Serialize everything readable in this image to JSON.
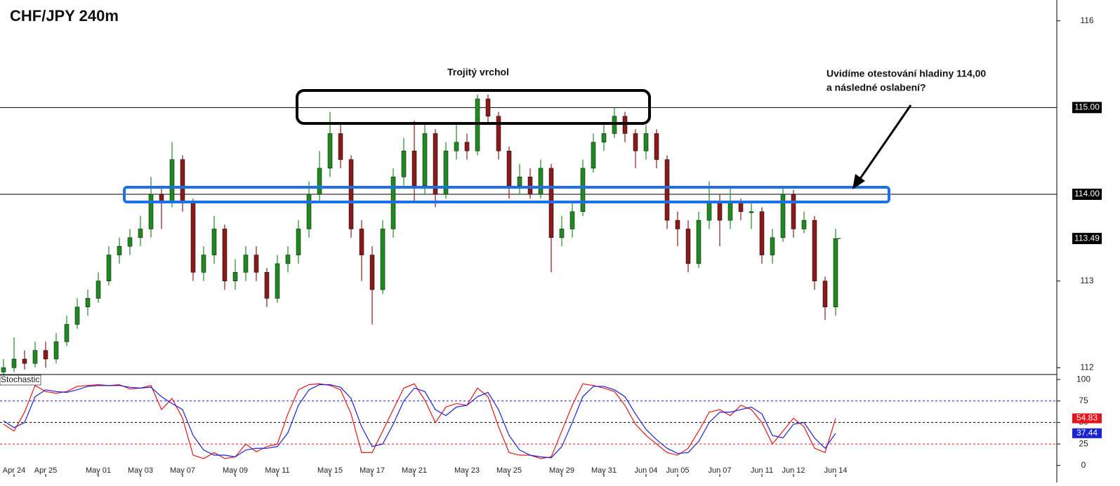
{
  "chart_data": [
    {
      "type": "candlestick",
      "title": "CHF/JPY 240m",
      "annotations": [
        "Trojitý vrchol",
        "Uvidíme otestování hladiny 114,00",
        "a následné oslabení?"
      ],
      "categories": [
        null,
        "Apr 24",
        null,
        null,
        "Apr 25",
        null,
        null,
        null,
        null,
        "May 01",
        null,
        null,
        null,
        "May 03",
        null,
        null,
        null,
        "May 07",
        null,
        null,
        null,
        null,
        "May 09",
        null,
        null,
        null,
        "May 11",
        null,
        null,
        null,
        null,
        "May 15",
        null,
        null,
        null,
        "May 17",
        null,
        null,
        null,
        "May 21",
        null,
        null,
        null,
        null,
        "May 23",
        null,
        null,
        null,
        "May 25",
        null,
        null,
        null,
        null,
        "May 29",
        null,
        null,
        null,
        "May 31",
        null,
        null,
        null,
        "Jun 04",
        null,
        null,
        "Jun 05",
        null,
        null,
        null,
        "Jun 07",
        null,
        null,
        null,
        "Jun 11",
        null,
        null,
        "Jun 12",
        null,
        null,
        null,
        "Jun 14"
      ],
      "open": [
        111.95,
        112.0,
        112.1,
        112.05,
        112.2,
        112.1,
        112.3,
        112.5,
        112.7,
        112.8,
        113.0,
        113.3,
        113.4,
        113.5,
        113.6,
        114.0,
        113.9,
        114.4,
        113.9,
        113.1,
        113.3,
        113.6,
        113.0,
        113.1,
        113.3,
        113.1,
        112.8,
        113.2,
        113.3,
        113.6,
        114.0,
        114.3,
        114.7,
        114.4,
        113.6,
        113.3,
        112.9,
        113.6,
        114.2,
        114.5,
        114.1,
        114.7,
        114.0,
        114.5,
        114.6,
        114.5,
        115.1,
        114.9,
        114.5,
        114.1,
        114.2,
        114.0,
        114.3,
        113.5,
        113.6,
        113.8,
        114.3,
        114.6,
        114.7,
        114.9,
        114.7,
        114.5,
        114.7,
        114.4,
        113.7,
        113.6,
        113.2,
        113.7,
        113.9,
        113.7,
        113.9,
        113.8,
        113.8,
        113.3,
        113.5,
        114.0,
        113.6,
        113.7,
        113.0,
        112.7
      ],
      "high": [
        112.1,
        112.35,
        112.2,
        112.3,
        112.3,
        112.4,
        112.6,
        112.8,
        112.9,
        113.1,
        113.4,
        113.5,
        113.6,
        113.75,
        114.2,
        114.1,
        114.6,
        114.45,
        113.95,
        113.4,
        113.75,
        113.65,
        113.25,
        113.4,
        113.4,
        113.15,
        113.3,
        113.4,
        113.7,
        114.15,
        114.5,
        114.95,
        114.8,
        114.45,
        113.7,
        113.4,
        113.7,
        114.3,
        114.65,
        114.85,
        114.8,
        114.75,
        114.6,
        114.8,
        114.7,
        115.15,
        115.15,
        114.95,
        114.55,
        114.35,
        114.3,
        114.4,
        114.35,
        113.75,
        113.9,
        114.4,
        114.7,
        114.8,
        115.0,
        114.95,
        114.75,
        114.8,
        114.75,
        114.45,
        113.8,
        113.7,
        113.8,
        114.15,
        114.0,
        114.1,
        113.95,
        113.9,
        113.85,
        113.6,
        114.1,
        114.05,
        113.8,
        113.75,
        113.05,
        113.6
      ],
      "low": [
        111.9,
        111.95,
        111.98,
        112.0,
        112.0,
        112.05,
        112.25,
        112.45,
        112.6,
        112.75,
        112.95,
        113.2,
        113.3,
        113.4,
        113.5,
        113.6,
        113.85,
        113.8,
        113.0,
        113.0,
        113.2,
        112.9,
        112.9,
        113.0,
        113.0,
        112.7,
        112.75,
        113.1,
        113.2,
        113.5,
        113.9,
        114.2,
        114.3,
        113.5,
        113.0,
        112.5,
        112.85,
        113.5,
        114.1,
        113.9,
        114.0,
        113.85,
        113.95,
        114.4,
        114.4,
        114.45,
        114.8,
        114.4,
        113.95,
        114.0,
        113.95,
        113.95,
        113.1,
        113.4,
        113.5,
        113.75,
        114.25,
        114.5,
        114.65,
        114.6,
        114.3,
        114.4,
        114.3,
        113.6,
        113.4,
        113.1,
        113.15,
        113.6,
        113.4,
        113.6,
        113.7,
        113.6,
        113.2,
        113.2,
        113.45,
        113.5,
        113.55,
        112.9,
        112.55,
        112.6
      ],
      "close": [
        112.0,
        112.1,
        112.05,
        112.2,
        112.1,
        112.3,
        112.5,
        112.7,
        112.8,
        113.0,
        113.3,
        113.4,
        113.5,
        113.6,
        114.0,
        113.9,
        114.4,
        113.9,
        113.1,
        113.3,
        113.6,
        113.0,
        113.1,
        113.3,
        113.1,
        112.8,
        113.2,
        113.3,
        113.6,
        114.0,
        114.3,
        114.7,
        114.4,
        113.6,
        113.3,
        112.9,
        113.6,
        114.2,
        114.5,
        114.1,
        114.7,
        114.0,
        114.5,
        114.6,
        114.5,
        115.1,
        114.9,
        114.5,
        114.1,
        114.2,
        114.0,
        114.3,
        113.5,
        113.6,
        113.8,
        114.3,
        114.6,
        114.7,
        114.9,
        114.7,
        114.5,
        114.7,
        114.4,
        113.7,
        113.6,
        113.2,
        113.7,
        113.9,
        113.7,
        113.9,
        113.8,
        113.8,
        113.3,
        113.5,
        114.0,
        113.6,
        113.7,
        113.0,
        112.7,
        113.49
      ],
      "up_color": "#1f8a1f",
      "down_color": "#8b1a1a",
      "ylim": [
        111.93,
        116.24
      ],
      "yticks": [
        112,
        113,
        116
      ],
      "hlines": [
        {
          "value": 115,
          "label": "115.00"
        },
        {
          "value": 114,
          "label": "114.00"
        }
      ]
    },
    {
      "type": "line",
      "title": "Stochastic",
      "series": [
        {
          "name": "%K",
          "color": "#e8141b",
          "values": [
            48,
            40,
            62,
            93,
            86,
            84,
            86,
            92,
            93,
            94,
            93,
            94,
            89,
            90,
            93,
            65,
            78,
            55,
            12,
            8,
            15,
            8,
            10,
            25,
            16,
            22,
            25,
            60,
            88,
            94,
            95,
            93,
            88,
            60,
            15,
            15,
            40,
            65,
            90,
            95,
            76,
            50,
            68,
            72,
            70,
            90,
            80,
            45,
            15,
            12,
            12,
            8,
            10,
            40,
            70,
            95,
            93,
            90,
            86,
            70,
            48,
            35,
            25,
            15,
            12,
            20,
            40,
            62,
            65,
            58,
            70,
            65,
            50,
            25,
            40,
            55,
            45,
            20,
            15,
            54.83
          ]
        },
        {
          "name": "%D",
          "color": "#1a22d8",
          "values": [
            52,
            44,
            50,
            80,
            88,
            86,
            85,
            88,
            92,
            93,
            93,
            93,
            91,
            90,
            91,
            80,
            72,
            65,
            35,
            18,
            12,
            12,
            10,
            18,
            20,
            20,
            22,
            38,
            70,
            88,
            94,
            94,
            91,
            78,
            45,
            22,
            25,
            48,
            75,
            90,
            86,
            65,
            58,
            68,
            70,
            80,
            85,
            65,
            35,
            18,
            12,
            10,
            9,
            22,
            50,
            80,
            92,
            92,
            88,
            80,
            60,
            42,
            30,
            20,
            14,
            15,
            28,
            50,
            62,
            62,
            65,
            68,
            60,
            35,
            32,
            48,
            50,
            32,
            20,
            37.44
          ]
        }
      ],
      "ylim": [
        -10,
        105
      ],
      "yticks": [
        0,
        25,
        50,
        75,
        100
      ],
      "levels": [
        {
          "value": 75,
          "color": "#1a22d8"
        },
        {
          "value": 50,
          "color": "#000000"
        },
        {
          "value": 25,
          "color": "#e8141b"
        }
      ]
    }
  ]
}
